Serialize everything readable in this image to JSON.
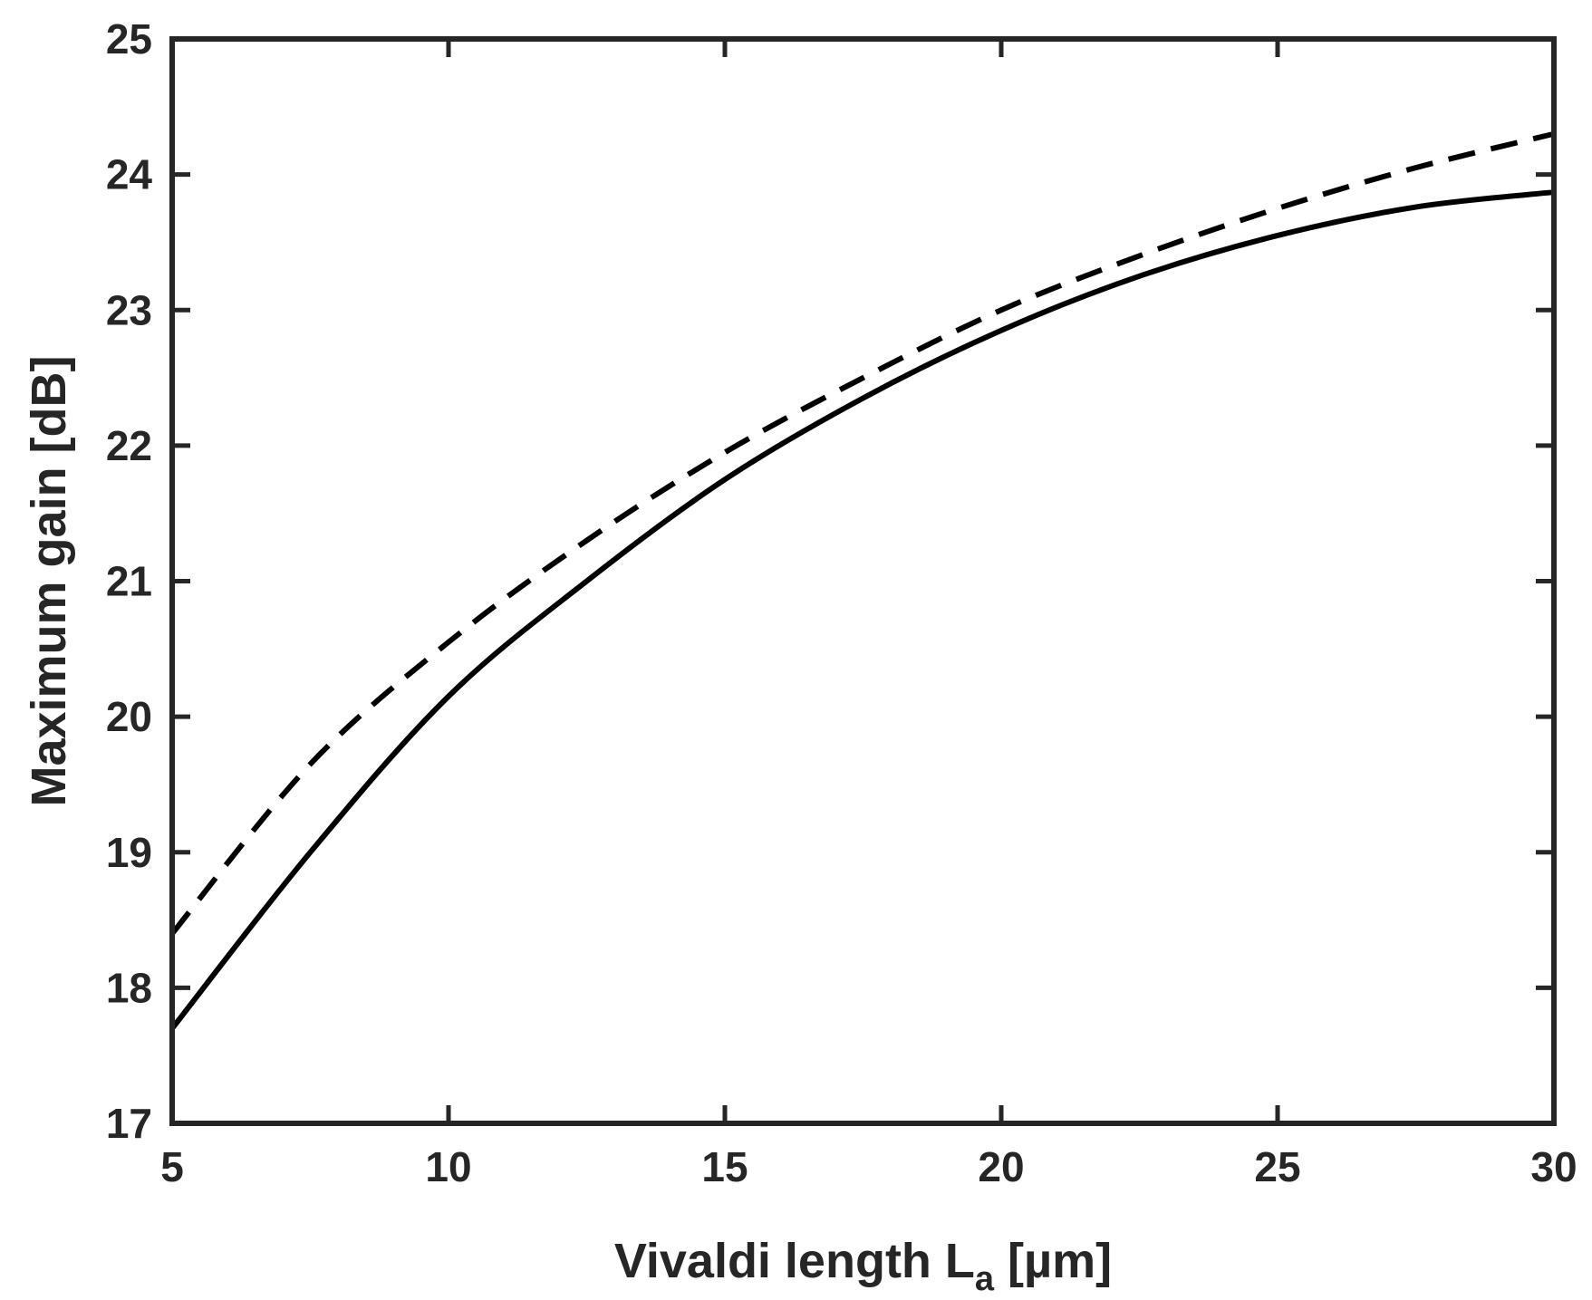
{
  "chart_data": {
    "type": "line",
    "title": "",
    "xlabel": "Vivaldi length L",
    "xlabel_subscript": "a",
    "xlabel_unit": " [µm]",
    "ylabel": "Maximum gain [dB]",
    "xlim": [
      5,
      30
    ],
    "ylim": [
      17,
      25
    ],
    "xticks": [
      5,
      10,
      15,
      20,
      25,
      30
    ],
    "yticks": [
      17,
      18,
      19,
      20,
      21,
      22,
      23,
      24,
      25
    ],
    "grid": false,
    "legend": "none",
    "colors": {
      "axis": "#262626",
      "line": "#000000",
      "background": "#ffffff"
    },
    "x": [
      5,
      7.5,
      10,
      12.5,
      15,
      17.5,
      20,
      22.5,
      25,
      27.5,
      30
    ],
    "series": [
      {
        "style": "solid",
        "values": [
          17.7,
          19.0,
          20.15,
          21.0,
          21.75,
          22.35,
          22.85,
          23.25,
          23.55,
          23.76,
          23.87
        ]
      },
      {
        "style": "dashed",
        "values": [
          18.4,
          19.65,
          20.55,
          21.3,
          21.95,
          22.5,
          23.0,
          23.4,
          23.75,
          24.05,
          24.3
        ]
      }
    ]
  }
}
